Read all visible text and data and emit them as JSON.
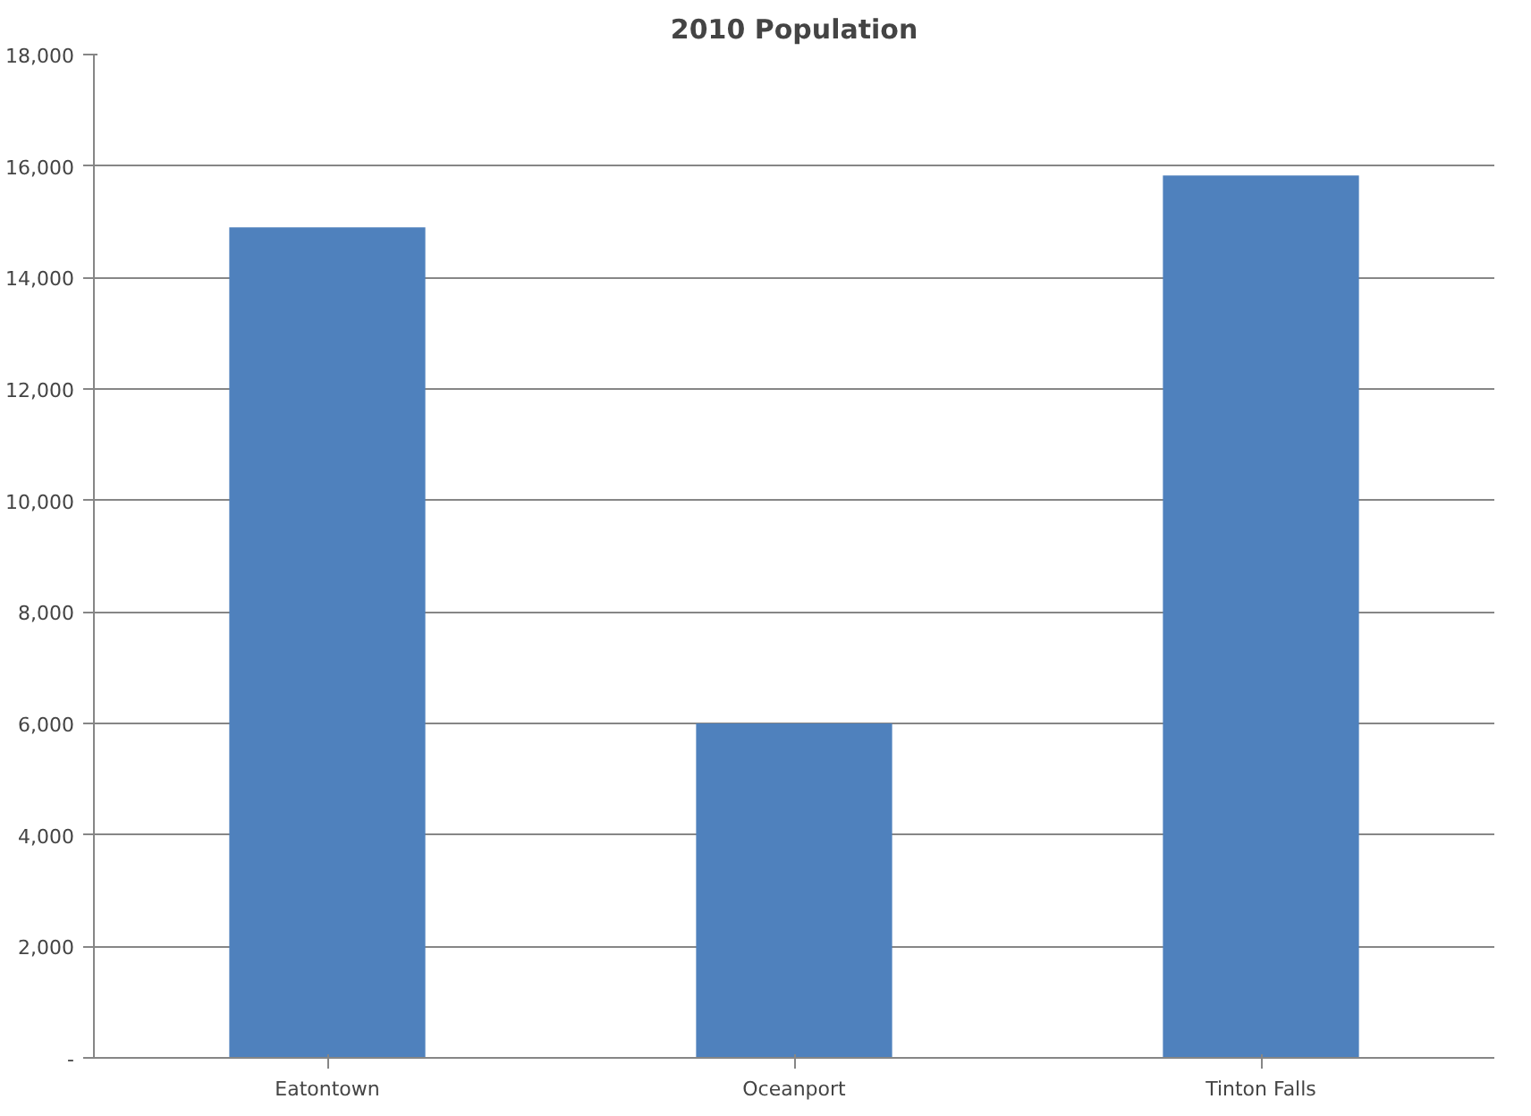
{
  "chart_data": {
    "type": "bar",
    "title": "2010 Population",
    "categories": [
      "Eatontown",
      "Oceanport",
      "Tinton Falls"
    ],
    "values": [
      14900,
      6000,
      15830
    ],
    "color": "#4f81bd",
    "ylim": [
      0,
      18000
    ],
    "yticks": [
      {
        "value": 0,
        "label": "-"
      },
      {
        "value": 2000,
        "label": "2,000"
      },
      {
        "value": 4000,
        "label": "4,000"
      },
      {
        "value": 6000,
        "label": "6,000"
      },
      {
        "value": 8000,
        "label": "8,000"
      },
      {
        "value": 10000,
        "label": "10,000"
      },
      {
        "value": 12000,
        "label": "12,000"
      },
      {
        "value": 14000,
        "label": "14,000"
      },
      {
        "value": 16000,
        "label": "16,000"
      },
      {
        "value": 18000,
        "label": "18,000"
      }
    ],
    "grid": "y"
  }
}
